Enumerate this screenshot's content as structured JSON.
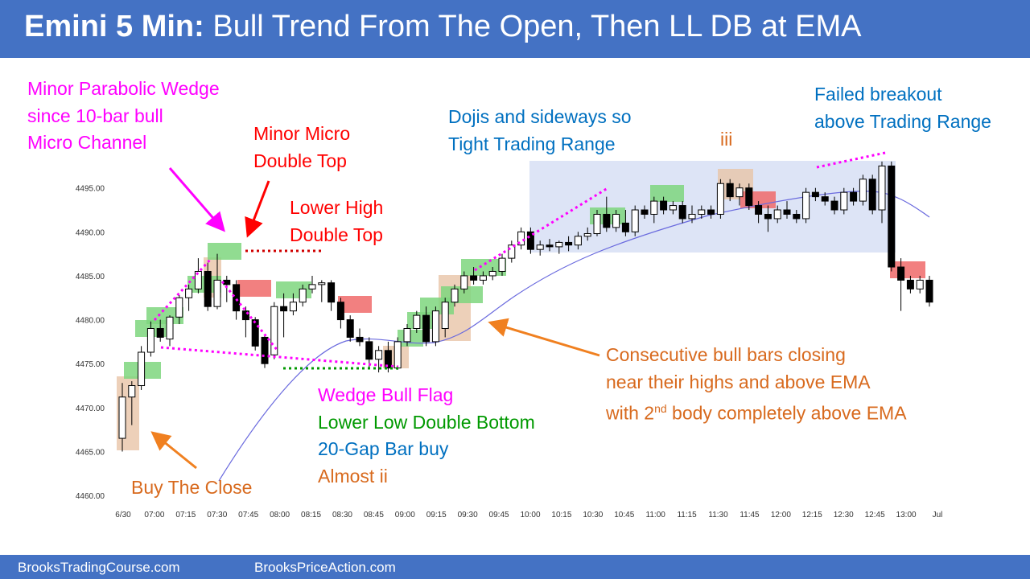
{
  "title": {
    "bold": "Emini 5 Min:",
    "rest": " Bull Trend From The Open, Then LL DB at EMA"
  },
  "footer": {
    "left": "BrooksTradingCourse.com",
    "right": "BrooksPriceAction.com"
  },
  "colors": {
    "header": "#4472C4",
    "magenta": "#FF00FF",
    "red": "#FF0000",
    "green": "#009900",
    "blue": "#0070C0",
    "orange": "#D86A1E",
    "ema": "#6A6ADE",
    "bull_highlight": "#7ED67E",
    "bear_highlight": "#F06A6A",
    "tan_highlight": "#E8C4A8",
    "range_box": "#DDE4F6"
  },
  "annotations": {
    "parabolic_wedge": [
      "Minor Parabolic Wedge",
      "since 10-bar bull",
      "Micro Channel"
    ],
    "micro_double_top": [
      "Minor Micro",
      "Double Top"
    ],
    "lower_high": [
      "Lower High",
      "Double Top"
    ],
    "dojis": [
      "Dojis and sideways so",
      "Tight Trading Range"
    ],
    "iii": "iii",
    "failed_breakout": [
      "Failed breakout",
      "above Trading Range"
    ],
    "consecutive": {
      "line1": "Consecutive bull bars closing",
      "line2": "near their highs and above EMA",
      "line3_a": "with 2",
      "line3_sup": "nd",
      "line3_b": " body completely above EMA"
    },
    "wedge_bull_flag": "Wedge Bull Flag",
    "lower_low_db": "Lower Low Double Bottom",
    "gap_bar": "20-Gap Bar buy",
    "almost_ii": "Almost ii",
    "buy_close": "Buy The Close"
  },
  "chart_data": {
    "type": "candlestick",
    "y_ticks": [
      "4460.00",
      "4465.00",
      "4470.00",
      "4475.00",
      "4480.00",
      "4485.00",
      "4490.00",
      "4495.00"
    ],
    "ylim": [
      4459,
      4499
    ],
    "x_ticks": [
      "6/30",
      "07:00",
      "07:15",
      "07:30",
      "07:45",
      "08:00",
      "08:15",
      "08:30",
      "08:45",
      "09:00",
      "09:15",
      "09:30",
      "09:45",
      "10:00",
      "10:15",
      "10:30",
      "10:45",
      "11:00",
      "11:15",
      "11:30",
      "11:45",
      "12:00",
      "12:15",
      "12:30",
      "12:45",
      "13:00",
      "Jul"
    ],
    "ohlc": [
      [
        4466.5,
        4472.8,
        4465.0,
        4471.2
      ],
      [
        4471.2,
        4473.0,
        4468.0,
        4472.5
      ],
      [
        4472.5,
        4477.0,
        4472.0,
        4476.3
      ],
      [
        4476.3,
        4479.8,
        4475.8,
        4479.0
      ],
      [
        4479.0,
        4480.0,
        4477.5,
        4478.0
      ],
      [
        4477.8,
        4480.5,
        4477.0,
        4480.3
      ],
      [
        4480.3,
        4482.8,
        4479.5,
        4482.5
      ],
      [
        4482.5,
        4484.0,
        4481.0,
        4483.5
      ],
      [
        4483.5,
        4487.0,
        4483.0,
        4485.5
      ],
      [
        4485.5,
        4486.5,
        4481.0,
        4481.5
      ],
      [
        4481.5,
        4487.5,
        4481.2,
        4484.5
      ],
      [
        4484.5,
        4485.0,
        4482.0,
        4484.0
      ],
      [
        4484.0,
        4484.5,
        4480.0,
        4481.0
      ],
      [
        4481.0,
        4481.5,
        4478.0,
        4480.0
      ],
      [
        4480.0,
        4480.3,
        4476.5,
        4477.0
      ],
      [
        4478.0,
        4478.3,
        4474.5,
        4475.0
      ],
      [
        4476.0,
        4482.0,
        4475.5,
        4481.5
      ],
      [
        4481.5,
        4483.0,
        4478.0,
        4481.0
      ],
      [
        4481.0,
        4483.0,
        4480.5,
        4482.0
      ],
      [
        4482.0,
        4484.0,
        4481.5,
        4483.5
      ],
      [
        4483.5,
        4485.0,
        4483.0,
        4484.0
      ],
      [
        4484.0,
        4484.5,
        4482.0,
        4484.2
      ],
      [
        4484.2,
        4484.5,
        4481.0,
        4482.0
      ],
      [
        4482.0,
        4482.5,
        4479.0,
        4480.0
      ],
      [
        4480.0,
        4480.5,
        4477.5,
        4478.0
      ],
      [
        4478.0,
        4479.0,
        4477.0,
        4477.5
      ],
      [
        4477.5,
        4478.0,
        4474.5,
        4475.5
      ],
      [
        4475.5,
        4477.0,
        4474.0,
        4476.5
      ],
      [
        4476.5,
        4477.5,
        4474.0,
        4474.5
      ],
      [
        4474.5,
        4478.0,
        4474.3,
        4477.5
      ],
      [
        4477.5,
        4479.5,
        4477.0,
        4479.0
      ],
      [
        4479.0,
        4481.0,
        4478.5,
        4480.5
      ],
      [
        4480.5,
        4481.5,
        4477.0,
        4477.5
      ],
      [
        4477.5,
        4481.5,
        4477.0,
        4481.0
      ],
      [
        4479.0,
        4482.5,
        4478.0,
        4482.0
      ],
      [
        4482.0,
        4484.0,
        4481.5,
        4483.5
      ],
      [
        4483.5,
        4485.5,
        4483.0,
        4485.0
      ],
      [
        4485.0,
        4486.0,
        4484.0,
        4484.5
      ],
      [
        4484.5,
        4485.5,
        4484.0,
        4485.0
      ],
      [
        4485.0,
        4486.0,
        4484.5,
        4485.5
      ],
      [
        4485.5,
        4487.5,
        4485.0,
        4487.0
      ],
      [
        4487.0,
        4489.0,
        4486.5,
        4488.5
      ],
      [
        4488.5,
        4490.5,
        4488.0,
        4490.0
      ],
      [
        4490.0,
        4490.5,
        4487.5,
        4488.0
      ],
      [
        4488.0,
        4489.0,
        4487.3,
        4488.5
      ],
      [
        4488.5,
        4489.2,
        4487.8,
        4488.3
      ],
      [
        4488.3,
        4489.0,
        4487.5,
        4488.8
      ],
      [
        4488.8,
        4489.5,
        4487.8,
        4488.5
      ],
      [
        4488.5,
        4490.0,
        4488.0,
        4489.5
      ],
      [
        4489.5,
        4490.5,
        4489.0,
        4489.8
      ],
      [
        4489.8,
        4492.5,
        4489.5,
        4492.0
      ],
      [
        4492.0,
        4494.0,
        4490.0,
        4490.5
      ],
      [
        4490.5,
        4492.5,
        4490.0,
        4492.0
      ],
      [
        4491.0,
        4492.5,
        4489.5,
        4490.0
      ],
      [
        4490.0,
        4493.0,
        4489.5,
        4492.5
      ],
      [
        4492.5,
        4493.0,
        4491.5,
        4492.0
      ],
      [
        4492.0,
        4494.0,
        4491.0,
        4493.5
      ],
      [
        4493.5,
        4494.0,
        4492.0,
        4492.5
      ],
      [
        4492.5,
        4493.5,
        4492.0,
        4493.0
      ],
      [
        4493.0,
        4493.5,
        4491.0,
        4491.5
      ],
      [
        4491.5,
        4493.0,
        4491.0,
        4492.0
      ],
      [
        4492.0,
        4493.0,
        4491.5,
        4492.5
      ],
      [
        4492.5,
        4493.0,
        4491.5,
        4492.0
      ],
      [
        4492.0,
        4496.0,
        4491.5,
        4495.5
      ],
      [
        4495.5,
        4496.0,
        4493.5,
        4494.0
      ],
      [
        4494.0,
        4495.5,
        4493.0,
        4495.0
      ],
      [
        4495.0,
        4495.5,
        4492.5,
        4493.0
      ],
      [
        4493.0,
        4493.5,
        4491.0,
        4492.0
      ],
      [
        4492.0,
        4493.0,
        4490.0,
        4491.5
      ],
      [
        4491.5,
        4493.0,
        4491.0,
        4492.5
      ],
      [
        4492.5,
        4493.5,
        4491.5,
        4492.0
      ],
      [
        4492.0,
        4492.5,
        4491.0,
        4491.5
      ],
      [
        4491.5,
        4495.0,
        4491.0,
        4494.5
      ],
      [
        4494.5,
        4495.0,
        4493.5,
        4494.0
      ],
      [
        4494.0,
        4494.5,
        4493.0,
        4493.5
      ],
      [
        4493.5,
        4494.0,
        4492.0,
        4492.5
      ],
      [
        4492.5,
        4495.0,
        4492.0,
        4494.5
      ],
      [
        4494.5,
        4495.0,
        4493.0,
        4493.5
      ],
      [
        4493.5,
        4496.5,
        4493.0,
        4496.0
      ],
      [
        4496.0,
        4496.5,
        4492.0,
        4492.5
      ],
      [
        4492.5,
        4498.0,
        4491.0,
        4497.5
      ],
      [
        4497.5,
        4498.0,
        4485.5,
        4486.0
      ],
      [
        4486.0,
        4487.0,
        4481.0,
        4484.5
      ],
      [
        4484.5,
        4485.0,
        4483.0,
        4483.5
      ],
      [
        4483.5,
        4485.0,
        4483.0,
        4484.5
      ],
      [
        4484.5,
        4485.0,
        4481.5,
        4482.0
      ]
    ]
  }
}
